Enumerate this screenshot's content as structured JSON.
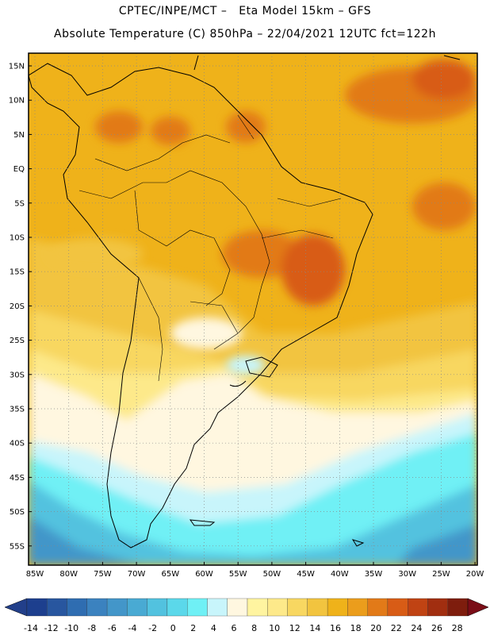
{
  "header": {
    "line1": "CPTEC/INPE/MCT –   Eta Model 15km – GFS",
    "line2": "Absolute Temperature (C) 850hPa – 22/04/2021 12UTC fct=122h"
  },
  "axes": {
    "lat_labels": [
      "15N",
      "10N",
      "5N",
      "EQ",
      "5S",
      "10S",
      "15S",
      "20S",
      "25S",
      "30S",
      "35S",
      "40S",
      "45S",
      "50S",
      "55S"
    ],
    "lon_labels": [
      "85W",
      "80W",
      "75W",
      "70W",
      "65W",
      "60W",
      "55W",
      "50W",
      "45W",
      "40W",
      "35W",
      "30W",
      "25W",
      "20W"
    ]
  },
  "colorbar": {
    "labels": [
      "-14",
      "-12",
      "-10",
      "-8",
      "-6",
      "-4",
      "-2",
      "0",
      "2",
      "4",
      "6",
      "8",
      "10",
      "12",
      "14",
      "16",
      "18",
      "20",
      "22",
      "24",
      "26",
      "28"
    ],
    "colors": [
      "#1d3f8e",
      "#28569f",
      "#2f6db1",
      "#3b82bf",
      "#4396c9",
      "#49aad3",
      "#52c2df",
      "#5bd8ea",
      "#6ff0f5",
      "#c8f5fb",
      "#fff7e0",
      "#fff4a0",
      "#fde98a",
      "#f8d761",
      "#f2c43f",
      "#efb21a",
      "#eb9d1c",
      "#e27a18",
      "#d85c16",
      "#c04313",
      "#a12e10",
      "#7e1d0d"
    ],
    "arrow_low": "#223f8a",
    "arrow_high": "#7a0d17"
  },
  "map_colors": {
    "background_tropical": "#efb21a",
    "hot": "#e27a18",
    "very_hot": "#d85c16",
    "warm": "#f2c43f",
    "mild": "#f8d761",
    "cool": "#fde98a",
    "cream": "#fff7e0",
    "pale_cyan": "#c8f5fb",
    "cyan": "#6ff0f5",
    "light_blue": "#52c2df",
    "mid_blue": "#4396c9"
  }
}
